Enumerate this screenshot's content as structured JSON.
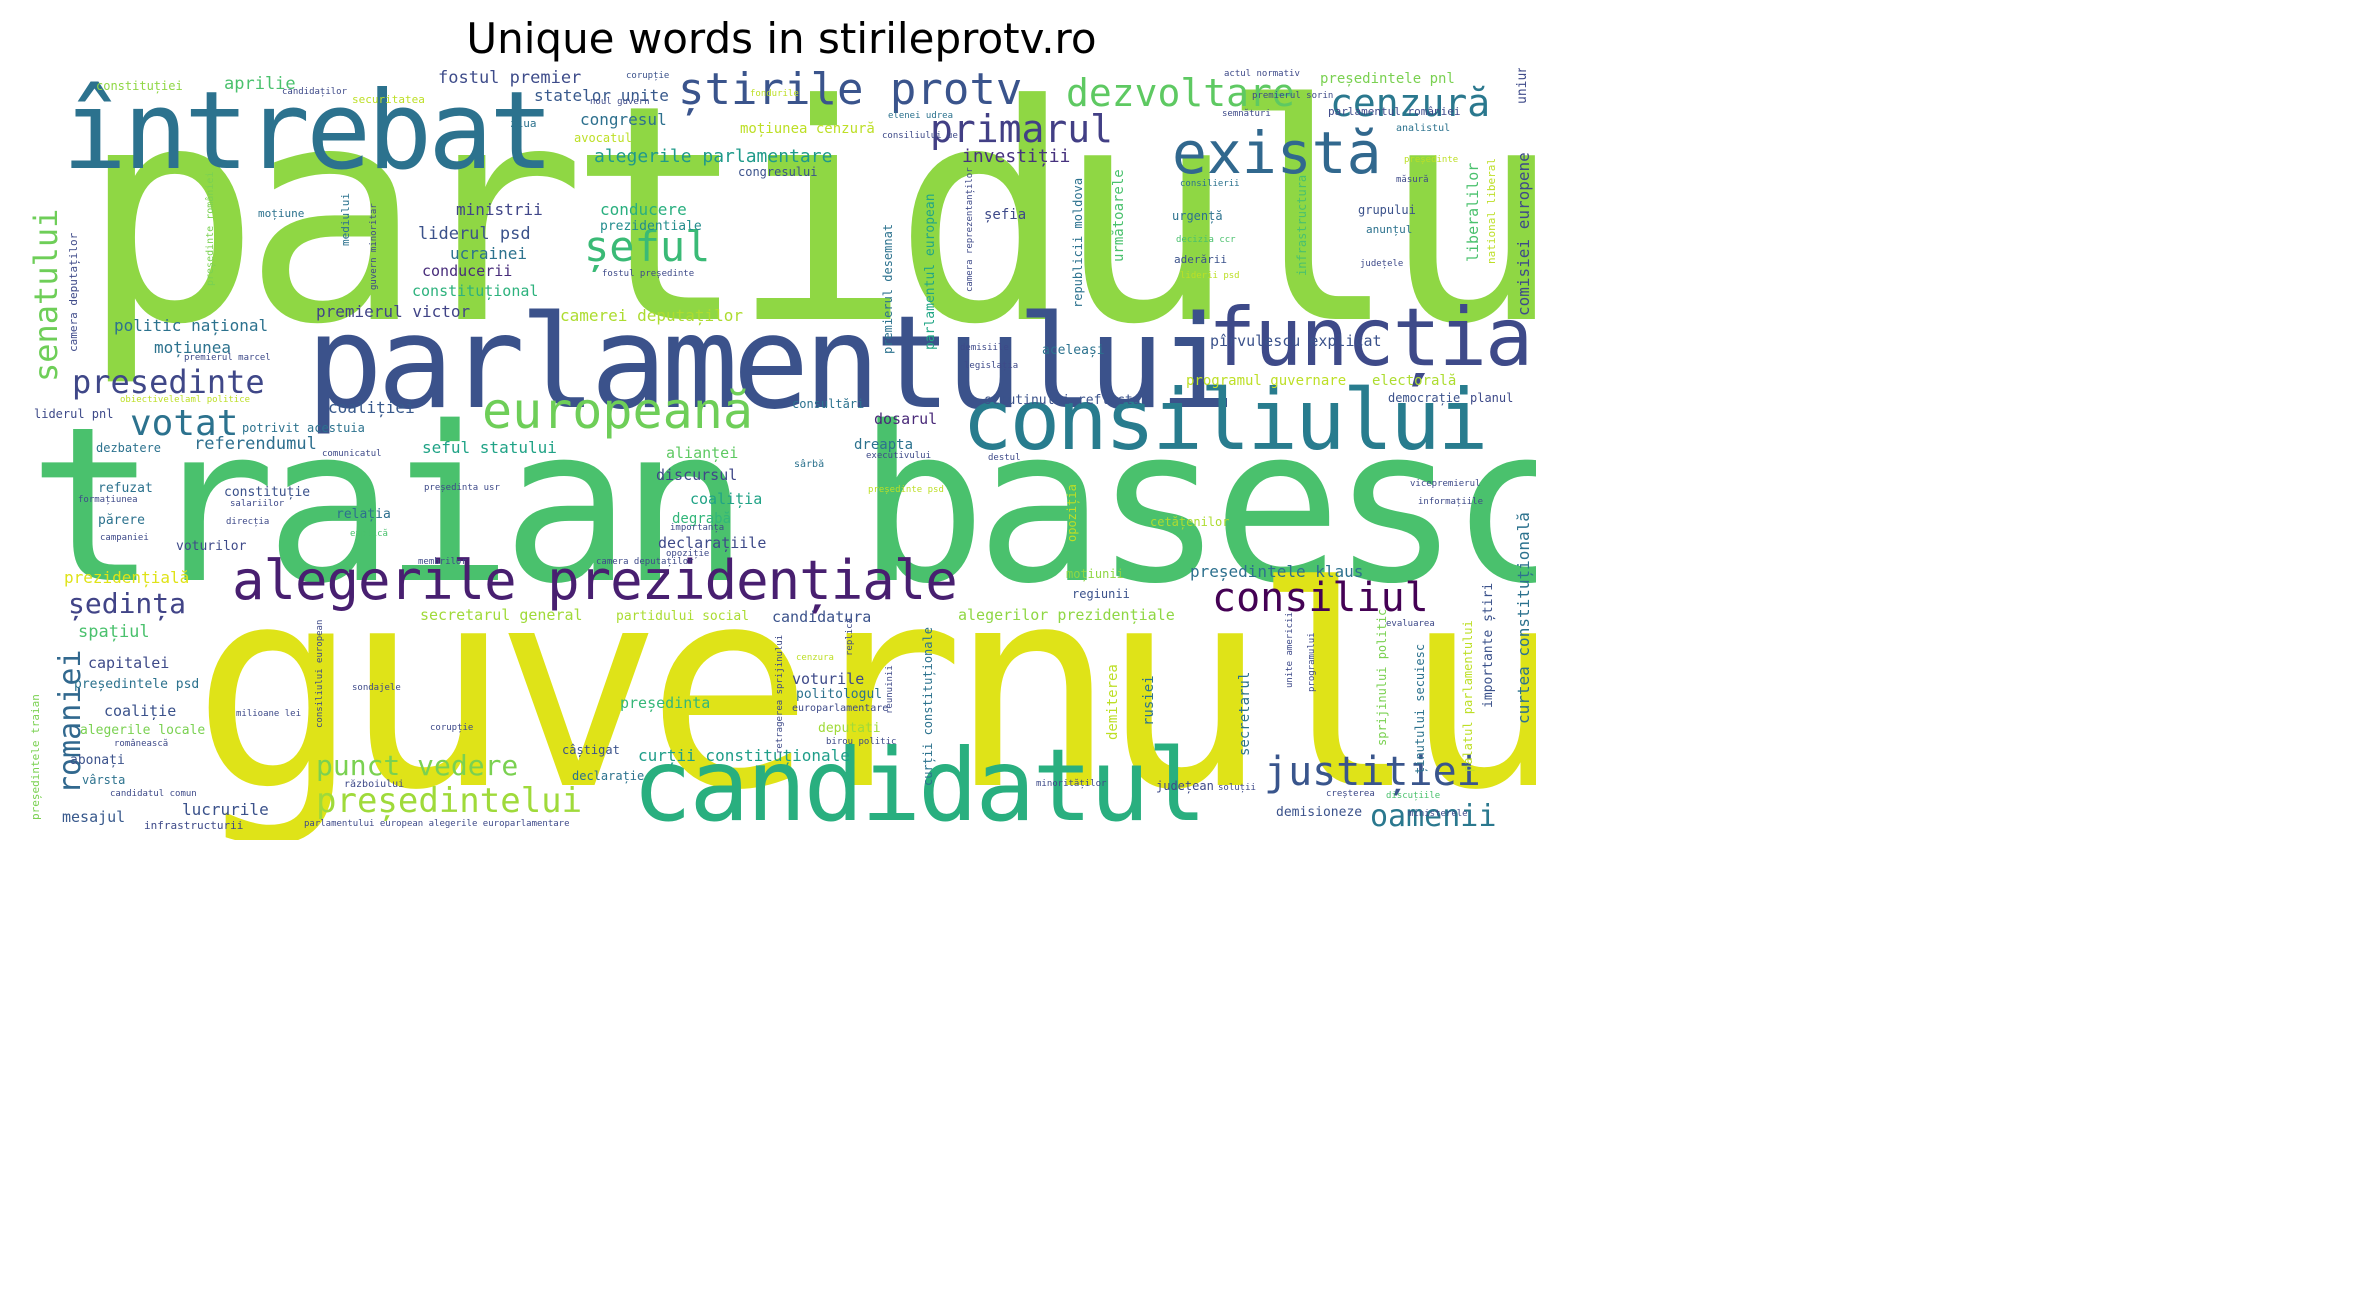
{
  "title": "Unique words in stirileprotv.ro",
  "palette": {
    "yellow": "#e5e419",
    "lime": "#8fd744",
    "green": "#4ac16d",
    "teal": "#21a685",
    "cyan": "#1e9b8a",
    "blue": "#2c728e",
    "indigo": "#3b528b",
    "violet": "#472d7b",
    "dark": "#440154"
  },
  "words": [
    {
      "text": "partidului",
      "color": "#8fd744"
    },
    {
      "text": "traian basescu",
      "color": "#4ac16d"
    },
    {
      "text": "guvernului",
      "color": "#dfe318"
    },
    {
      "text": "parlamentului",
      "color": "#3b528b"
    },
    {
      "text": "întrebat",
      "color": "#2c728e"
    },
    {
      "text": "candidatul",
      "color": "#29af7f"
    },
    {
      "text": "consiliului",
      "color": "#287c8e"
    },
    {
      "text": "funcția",
      "color": "#3e4a89"
    },
    {
      "text": "alegerile prezidențiale",
      "color": "#481f70"
    },
    {
      "text": "există",
      "color": "#31688e"
    },
    {
      "text": "europeană",
      "color": "#6ece58"
    },
    {
      "text": "știrile protv",
      "color": "#3a548c"
    },
    {
      "text": "dezvoltare",
      "color": "#5ec962"
    },
    {
      "text": "cenzură",
      "color": "#2a788e"
    },
    {
      "text": "primarul",
      "color": "#423f85"
    },
    {
      "text": "șeful",
      "color": "#3aba76"
    },
    {
      "text": "consiliul",
      "color": "#440154"
    },
    {
      "text": "justiției",
      "color": "#39558c"
    },
    {
      "text": "președintelui",
      "color": "#9fda3a"
    },
    {
      "text": "presedinte",
      "color": "#3f4788"
    },
    {
      "text": "votat",
      "color": "#2c728e"
    },
    {
      "text": "oamenii",
      "color": "#2a788e"
    },
    {
      "text": "senatului",
      "color": "#6ece58"
    },
    {
      "text": "romaniei",
      "color": "#31688e"
    },
    {
      "text": "ședința",
      "color": "#414487"
    },
    {
      "text": "punct vedere",
      "color": "#7ad151"
    },
    {
      "text": "alegerile parlamentare",
      "color": "#1f9a8a"
    },
    {
      "text": "investiții",
      "color": "#46327e"
    },
    {
      "text": "congresul",
      "color": "#2d708e"
    },
    {
      "text": "statelor unite",
      "color": "#38598c"
    },
    {
      "text": "fostul premier",
      "color": "#3e4c8a"
    },
    {
      "text": "aprilie",
      "color": "#4ac16d"
    },
    {
      "text": "moțiunea cenzură",
      "color": "#bddf26"
    },
    {
      "text": "congresului",
      "color": "#3b528b"
    },
    {
      "text": "conducere",
      "color": "#29af7f"
    },
    {
      "text": "prezidentiale",
      "color": "#228d8d"
    },
    {
      "text": "ministrii",
      "color": "#404688"
    },
    {
      "text": "liderul psd",
      "color": "#3b528b"
    },
    {
      "text": "ucrainei",
      "color": "#2c728e"
    },
    {
      "text": "conducerii",
      "color": "#472c7a"
    },
    {
      "text": "constituțional",
      "color": "#2db27d"
    },
    {
      "text": "premierul victor",
      "color": "#414487"
    },
    {
      "text": "camerei deputaților",
      "color": "#addc30"
    },
    {
      "text": "politic național",
      "color": "#2c728e"
    },
    {
      "text": "moțiunea",
      "color": "#2c728e"
    },
    {
      "text": "coaliției",
      "color": "#38598c"
    },
    {
      "text": "referendumul",
      "color": "#2e6f8e"
    },
    {
      "text": "seful statului",
      "color": "#20a386"
    },
    {
      "text": "alianței",
      "color": "#5ec962"
    },
    {
      "text": "discursul",
      "color": "#3f4788"
    },
    {
      "text": "coaliția",
      "color": "#20a386"
    },
    {
      "text": "degrabă",
      "color": "#32b67a"
    },
    {
      "text": "declarațiile",
      "color": "#3e4a89"
    },
    {
      "text": "dosarul",
      "color": "#482878"
    },
    {
      "text": "dreapta",
      "color": "#2c728e"
    },
    {
      "text": "refuzat",
      "color": "#2c728e"
    },
    {
      "text": "constituție",
      "color": "#3b528b"
    },
    {
      "text": "relația",
      "color": "#2d708e"
    },
    {
      "text": "părere",
      "color": "#2c728e"
    },
    {
      "text": "voturilor",
      "color": "#3e4a89"
    },
    {
      "text": "prezidențială",
      "color": "#dfe318"
    },
    {
      "text": "secretarul general",
      "color": "#a0da39"
    },
    {
      "text": "partidului social",
      "color": "#aadc32"
    },
    {
      "text": "candidatura",
      "color": "#3b528b"
    },
    {
      "text": "alegerilor prezidențiale",
      "color": "#8fd744"
    },
    {
      "text": "spațiul",
      "color": "#4ac16d"
    },
    {
      "text": "capitalei",
      "color": "#3e4a89"
    },
    {
      "text": "președintele psd",
      "color": "#2c728e"
    },
    {
      "text": "coaliție",
      "color": "#3b528b"
    },
    {
      "text": "alegerile locale",
      "color": "#7ad151"
    },
    {
      "text": "președinta",
      "color": "#35b779"
    },
    {
      "text": "voturile",
      "color": "#3e4a89"
    },
    {
      "text": "politologul",
      "color": "#2c728e"
    },
    {
      "text": "deputati",
      "color": "#a0da39"
    },
    {
      "text": "abonați",
      "color": "#3b528b"
    },
    {
      "text": "vârsta",
      "color": "#2c728e"
    },
    {
      "text": "câștigat",
      "color": "#3b528b"
    },
    {
      "text": "declarație",
      "color": "#2c728e"
    },
    {
      "text": "curții constituționale",
      "color": "#1f9e89"
    },
    {
      "text": "lucrurile",
      "color": "#3b528b"
    },
    {
      "text": "mesajul",
      "color": "#38598c"
    },
    {
      "text": "infrastructurii",
      "color": "#3e4a89"
    },
    {
      "text": "președintele klaus",
      "color": "#2d708e"
    },
    {
      "text": "regiunii",
      "color": "#3b528b"
    },
    {
      "text": "moțiunii",
      "color": "#8fd744"
    },
    {
      "text": "cetățenilor",
      "color": "#addc30"
    },
    {
      "text": "programul guvernare",
      "color": "#bddf26"
    },
    {
      "text": "electorală",
      "color": "#addc30"
    },
    {
      "text": "pîrvulescu explicat",
      "color": "#3b528b"
    },
    {
      "text": "aceleași",
      "color": "#2c728e"
    },
    {
      "text": "scrutinului reflectat",
      "color": "#3b528b"
    },
    {
      "text": "consultări",
      "color": "#2c728e"
    },
    {
      "text": "democrație",
      "color": "#3b528b"
    },
    {
      "text": "planul",
      "color": "#3e4a89"
    },
    {
      "text": "șefia",
      "color": "#3e4a89"
    },
    {
      "text": "urgență",
      "color": "#2c728e"
    },
    {
      "text": "aderării",
      "color": "#3b528b"
    },
    {
      "text": "grupului",
      "color": "#3b528b"
    },
    {
      "text": "anunțul",
      "color": "#2c728e"
    },
    {
      "text": "președintele pnl",
      "color": "#7ad151"
    },
    {
      "text": "parlamentul româniei",
      "color": "#3e4a89"
    },
    {
      "text": "analistul",
      "color": "#2c728e"
    },
    {
      "text": "liderul pnl",
      "color": "#3e4a89"
    },
    {
      "text": "potrivit acestuia",
      "color": "#2c728e"
    },
    {
      "text": "dezbatere",
      "color": "#2c728e"
    },
    {
      "text": "constituției",
      "color": "#8fd744"
    },
    {
      "text": "securitatea",
      "color": "#bddf26"
    },
    {
      "text": "avocatul",
      "color": "#bddf26"
    },
    {
      "text": "ziua",
      "color": "#2c728e"
    },
    {
      "text": "demisioneze",
      "color": "#3b528b"
    },
    {
      "text": "județean",
      "color": "#3e4a89"
    },
    {
      "text": "secretarul",
      "color": "#2c728e"
    },
    {
      "text": "rusiei",
      "color": "#2c728e"
    },
    {
      "text": "demiterea",
      "color": "#bddf26"
    },
    {
      "text": "opoziția",
      "color": "#bddf26"
    },
    {
      "text": "curtea constituțională",
      "color": "#2c728e"
    },
    {
      "text": "comisiei europene",
      "color": "#3e4a89"
    },
    {
      "text": "liberalilor",
      "color": "#4ac16d"
    },
    {
      "text": "parlamentul european",
      "color": "#21a685"
    },
    {
      "text": "următoarele",
      "color": "#4ac16d"
    },
    {
      "text": "infrastructura",
      "color": "#4ac16d"
    },
    {
      "text": "premierul desemnat",
      "color": "#2c728e"
    },
    {
      "text": "republicii moldova",
      "color": "#2c728e"
    },
    {
      "text": "camera deputaților",
      "color": "#3e4a89"
    },
    {
      "text": "președintele traian",
      "color": "#7ad151"
    },
    {
      "text": "uniunii europene",
      "color": "#3e4a89"
    },
    {
      "text": "palatul parlamentului",
      "color": "#bddf26"
    },
    {
      "text": "importante știri",
      "color": "#3b528b"
    },
    {
      "text": "ținutului secuiesc",
      "color": "#2c728e"
    },
    {
      "text": "sprijinului politic",
      "color": "#7ad151"
    },
    {
      "text": "curții constituționale",
      "color": "#2c728e"
    },
    {
      "text": "europarlamentare",
      "color": "#3e4a89"
    },
    {
      "text": "președinte româniei",
      "color": "#7ad151"
    },
    {
      "text": "mediului",
      "color": "#2c728e"
    },
    {
      "text": "moțiune",
      "color": "#2c728e"
    },
    {
      "text": "actul normativ",
      "color": "#3e4a89"
    },
    {
      "text": "corupție",
      "color": "#3b528b"
    },
    {
      "text": "candidaților",
      "color": "#3e4a89"
    },
    {
      "text": "noul guvern",
      "color": "#3e4a89"
    },
    {
      "text": "elenei udrea",
      "color": "#2c728e"
    },
    {
      "text": "consiliului ue",
      "color": "#3e4a89"
    },
    {
      "text": "premierul sorin",
      "color": "#3e4a89"
    },
    {
      "text": "fondurile",
      "color": "#bddf26"
    },
    {
      "text": "consilierii",
      "color": "#2c728e"
    },
    {
      "text": "măsură",
      "color": "#3e4a89"
    },
    {
      "text": "decizia ccr",
      "color": "#4ac16d"
    },
    {
      "text": "liderii psd",
      "color": "#bddf26"
    },
    {
      "text": "județele",
      "color": "#3e4a89"
    },
    {
      "text": "demisiile",
      "color": "#3e4a89"
    },
    {
      "text": "legislația",
      "color": "#3e4a89"
    },
    {
      "text": "sârbă",
      "color": "#2c728e"
    },
    {
      "text": "destul",
      "color": "#3e4a89"
    },
    {
      "text": "comunicatul",
      "color": "#3e4a89"
    },
    {
      "text": "președinta usr",
      "color": "#3e4a89"
    },
    {
      "text": "președinte psd",
      "color": "#bddf26"
    },
    {
      "text": "vicepremierul",
      "color": "#3e4a89"
    },
    {
      "text": "informațiile",
      "color": "#3e4a89"
    },
    {
      "text": "salariilor",
      "color": "#3e4a89"
    },
    {
      "text": "direcția",
      "color": "#3e4a89"
    },
    {
      "text": "campaniei",
      "color": "#3e4a89"
    },
    {
      "text": "explică",
      "color": "#4ac16d"
    },
    {
      "text": "membrilor",
      "color": "#3e4a89"
    },
    {
      "text": "camera deputaților",
      "color": "#3e4a89"
    },
    {
      "text": "sondajele",
      "color": "#3e4a89"
    },
    {
      "text": "milioane lei",
      "color": "#3e4a89"
    },
    {
      "text": "birou politic",
      "color": "#3e4a89"
    },
    {
      "text": "minorităților",
      "color": "#3e4a89"
    },
    {
      "text": "soluții",
      "color": "#3e4a89"
    },
    {
      "text": "creșterea",
      "color": "#3e4a89"
    },
    {
      "text": "discuțiile",
      "color": "#4ac16d"
    },
    {
      "text": "ministerele",
      "color": "#3e4a89"
    },
    {
      "text": "parlamentului european alegerile europarlamentare",
      "color": "#3e4a89"
    },
    {
      "text": "candidatul comun",
      "color": "#3e4a89"
    },
    {
      "text": "războiului",
      "color": "#3e4a89"
    },
    {
      "text": "românească",
      "color": "#3e4a89"
    },
    {
      "text": "formațiunea",
      "color": "#3e4a89"
    },
    {
      "text": "obiectivelelaml politice",
      "color": "#bddf26"
    },
    {
      "text": "premierul marcel",
      "color": "#3e4a89"
    },
    {
      "text": "guvern minoritar",
      "color": "#3e4a89"
    },
    {
      "text": "camera reprezentanților",
      "color": "#3e4a89"
    },
    {
      "text": "fostul președinte",
      "color": "#3e4a89"
    },
    {
      "text": "executivului",
      "color": "#3e4a89"
    },
    {
      "text": "semnături",
      "color": "#3e4a89"
    },
    {
      "text": "national liberal",
      "color": "#bddf26"
    },
    {
      "text": "importanța",
      "color": "#3e4a89"
    },
    {
      "text": "cenzura",
      "color": "#bddf26"
    },
    {
      "text": "replică",
      "color": "#3e4a89"
    },
    {
      "text": "reunuinii",
      "color": "#3e4a89"
    },
    {
      "text": "unite americii",
      "color": "#3e4a89"
    },
    {
      "text": "programului",
      "color": "#3e4a89"
    },
    {
      "text": "evaluarea",
      "color": "#3e4a89"
    },
    {
      "text": "retragerea sprijinului",
      "color": "#3e4a89"
    },
    {
      "text": "opoziție",
      "color": "#3e4a89"
    },
    {
      "text": "președinte",
      "color": "#bddf26"
    },
    {
      "text": "consiliului european",
      "color": "#3e4a89"
    },
    {
      "text": "corupție",
      "color": "#3e4a89"
    }
  ]
}
